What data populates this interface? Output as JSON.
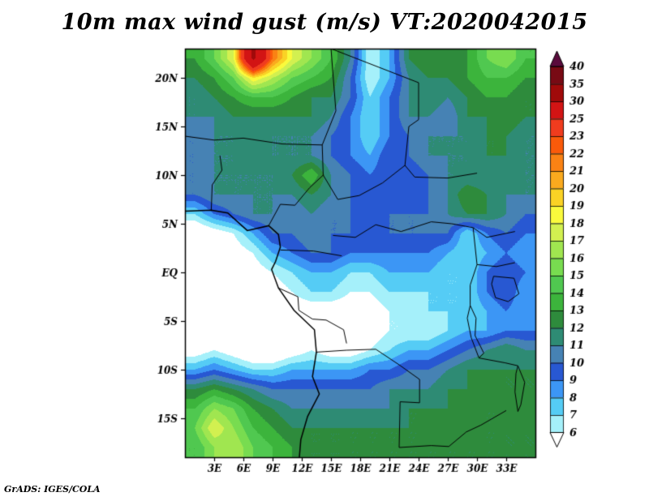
{
  "title": "10m max wind gust (m/s) VT:2020042015",
  "credit": "GrADS: IGES/COLA",
  "chart_data": {
    "type": "heatmap",
    "title": "10m max wind gust (m/s) VT:2020042015",
    "units": "m/s",
    "valid_time_label": "VT:2020042015",
    "lon_range": [
      0,
      36
    ],
    "lat_range": [
      23,
      -19
    ],
    "x_ticks": [
      {
        "value": 3,
        "label": "3E"
      },
      {
        "value": 6,
        "label": "6E"
      },
      {
        "value": 9,
        "label": "9E"
      },
      {
        "value": 12,
        "label": "12E"
      },
      {
        "value": 15,
        "label": "15E"
      },
      {
        "value": 18,
        "label": "18E"
      },
      {
        "value": 21,
        "label": "21E"
      },
      {
        "value": 24,
        "label": "24E"
      },
      {
        "value": 27,
        "label": "27E"
      },
      {
        "value": 30,
        "label": "30E"
      },
      {
        "value": 33,
        "label": "33E"
      }
    ],
    "y_ticks": [
      {
        "value": 20,
        "label": "20N"
      },
      {
        "value": 15,
        "label": "15N"
      },
      {
        "value": 10,
        "label": "10N"
      },
      {
        "value": 5,
        "label": "5N"
      },
      {
        "value": 0,
        "label": "EQ"
      },
      {
        "value": -5,
        "label": "5S"
      },
      {
        "value": -10,
        "label": "10S"
      },
      {
        "value": -15,
        "label": "15S"
      }
    ],
    "colorbar": {
      "levels": [
        6,
        7,
        8,
        9,
        10,
        11,
        12,
        13,
        14,
        15,
        16,
        17,
        18,
        19,
        20,
        21,
        22,
        23,
        25,
        30,
        35,
        40
      ],
      "labels": [
        "6",
        "7",
        "8",
        "9",
        "10",
        "11",
        "12",
        "13",
        "14",
        "15",
        "16",
        "17",
        "18",
        "19",
        "20",
        "21",
        "22",
        "23",
        "25",
        "30",
        "35",
        "40"
      ],
      "segment_colors": [
        "#a5f0fa",
        "#55ccf5",
        "#3c96f5",
        "#2858d2",
        "#4682b4",
        "#2e8b74",
        "#2e8b3c",
        "#3cb43c",
        "#50c850",
        "#78dc50",
        "#a0e650",
        "#d2f050",
        "#fafa3c",
        "#fad225",
        "#faaa1e",
        "#fa8214",
        "#fa5a0a",
        "#f03c1e",
        "#d21414",
        "#a00a0a",
        "#780a14"
      ],
      "under_color": "#ffffff",
      "over_color": "#5a0a3c"
    },
    "grid": {
      "lon_start": 1,
      "lon_step": 2,
      "lat_start": 22,
      "lat_step": -2,
      "values": [
        [
          13,
          15,
          18,
          31,
          22,
          18,
          16,
          14,
          11,
          6,
          8,
          12,
          13,
          12,
          13,
          15,
          16,
          14
        ],
        [
          12,
          13,
          15,
          19,
          17,
          15,
          14,
          13,
          10,
          6,
          8,
          11,
          12,
          12,
          13,
          14,
          14,
          13
        ],
        [
          11,
          12,
          13,
          14,
          14,
          13,
          12,
          12,
          10,
          7,
          9,
          11,
          12,
          11,
          12,
          13,
          13,
          12
        ],
        [
          11,
          11,
          12,
          12,
          12,
          12,
          12,
          11,
          9,
          7,
          9,
          11,
          11,
          10,
          12,
          12,
          13,
          12
        ],
        [
          10,
          11,
          11,
          12,
          11,
          11,
          11,
          10,
          9,
          7,
          9,
          10,
          11,
          11,
          11,
          12,
          12,
          11
        ],
        [
          10,
          11,
          11,
          12,
          11,
          11,
          11,
          10,
          9,
          8,
          10,
          10,
          11,
          11,
          11,
          12,
          12,
          11
        ],
        [
          10,
          11,
          11,
          11,
          11,
          12,
          14,
          11,
          10,
          9,
          10,
          9,
          10,
          11,
          11,
          11,
          12,
          11
        ],
        [
          10,
          11,
          11,
          11,
          11,
          11,
          12,
          11,
          10,
          10,
          10,
          9,
          10,
          11,
          13,
          12,
          11,
          11
        ],
        [
          7,
          9,
          10,
          11,
          11,
          10,
          11,
          10,
          10,
          9,
          10,
          10,
          10,
          11,
          12,
          12,
          11,
          10
        ],
        [
          4,
          5,
          6,
          8,
          10,
          10,
          11,
          10,
          10,
          10,
          10,
          10,
          10,
          10,
          7,
          9,
          10,
          9
        ],
        [
          3,
          4,
          5,
          6,
          8,
          9,
          10,
          10,
          9,
          9,
          9,
          9,
          9,
          8,
          7,
          8,
          9,
          8
        ],
        [
          2,
          3,
          4,
          5,
          6,
          7,
          8,
          8,
          7,
          7,
          8,
          8,
          8,
          7,
          7,
          9,
          10,
          9
        ],
        [
          2,
          3,
          3,
          4,
          5,
          6,
          7,
          7,
          6,
          6,
          7,
          7,
          7,
          7,
          7,
          9,
          10,
          8
        ],
        [
          2,
          2,
          3,
          3,
          4,
          5,
          5,
          5,
          5,
          5,
          6,
          6,
          7,
          7,
          7,
          8,
          9,
          8
        ],
        [
          3,
          2,
          2,
          3,
          3,
          4,
          4,
          5,
          5,
          5,
          6,
          6,
          6,
          7,
          8,
          8,
          9,
          9
        ],
        [
          5,
          6,
          5,
          4,
          4,
          5,
          6,
          5,
          5,
          6,
          7,
          8,
          8,
          9,
          10,
          11,
          12,
          11
        ],
        [
          8,
          9,
          8,
          7,
          7,
          8,
          8,
          8,
          8,
          9,
          9,
          10,
          10,
          11,
          12,
          12,
          12,
          12
        ],
        [
          12,
          13,
          12,
          11,
          10,
          10,
          10,
          10,
          10,
          10,
          11,
          11,
          11,
          12,
          12,
          13,
          12,
          12
        ],
        [
          14,
          16,
          15,
          13,
          12,
          11,
          11,
          11,
          11,
          11,
          11,
          12,
          12,
          12,
          13,
          12,
          12,
          13
        ],
        [
          15,
          18,
          16,
          14,
          13,
          12,
          12,
          12,
          12,
          12,
          12,
          12,
          12,
          13,
          13,
          12,
          12,
          12
        ],
        [
          14,
          16,
          17,
          15,
          14,
          13,
          12,
          12,
          12,
          12,
          12,
          12,
          12,
          12,
          12,
          12,
          12,
          12
        ]
      ]
    },
    "coastline": [
      [
        [
          0,
          6.3
        ],
        [
          2.7,
          6.4
        ],
        [
          4.4,
          6.1
        ],
        [
          6.4,
          4.3
        ],
        [
          8.6,
          4.8
        ],
        [
          9.6,
          3.9
        ],
        [
          9.8,
          2.6
        ],
        [
          9.3,
          1.1
        ],
        [
          8.9,
          0.3
        ],
        [
          9.6,
          -1.6
        ],
        [
          11.2,
          -3.9
        ],
        [
          13.3,
          -5.9
        ],
        [
          13.5,
          -8.2
        ],
        [
          13.1,
          -10.7
        ],
        [
          13.8,
          -12.5
        ],
        [
          12.6,
          -14.8
        ],
        [
          11.9,
          -17.2
        ],
        [
          11.75,
          -19
        ]
      ]
    ],
    "borders": [
      [
        [
          0,
          14.0
        ],
        [
          3,
          13.6
        ],
        [
          6,
          13.8
        ],
        [
          10,
          13.2
        ],
        [
          14.1,
          13.1
        ]
      ],
      [
        [
          2.7,
          6.4
        ],
        [
          2.8,
          9.0
        ],
        [
          3.8,
          10.5
        ],
        [
          3.6,
          12.0
        ]
      ],
      [
        [
          8.6,
          4.8
        ],
        [
          9.8,
          7.0
        ],
        [
          11.3,
          6.9
        ],
        [
          12.8,
          8.7
        ],
        [
          14.2,
          10.0
        ],
        [
          14.1,
          13.1
        ]
      ],
      [
        [
          14.1,
          13.1
        ],
        [
          15.5,
          16.6
        ],
        [
          15.0,
          23.0
        ]
      ],
      [
        [
          15.0,
          23.0
        ],
        [
          24.0,
          19.5
        ]
      ],
      [
        [
          24.0,
          19.5
        ],
        [
          24.0,
          15.7
        ],
        [
          23.0,
          15.0
        ],
        [
          22.6,
          11.0
        ],
        [
          23.6,
          9.8
        ]
      ],
      [
        [
          14.2,
          10.0
        ],
        [
          15.7,
          7.5
        ],
        [
          17.9,
          7.9
        ],
        [
          20.3,
          9.2
        ],
        [
          22.6,
          11.0
        ]
      ],
      [
        [
          23.6,
          9.8
        ],
        [
          27.0,
          9.7
        ],
        [
          30.0,
          10.2
        ]
      ],
      [
        [
          15.2,
          3.8
        ],
        [
          17.5,
          3.6
        ],
        [
          19.6,
          4.9
        ],
        [
          22.2,
          4.2
        ],
        [
          25.3,
          5.2
        ],
        [
          27.4,
          5.0
        ],
        [
          29.6,
          4.6
        ]
      ],
      [
        [
          29.6,
          4.6
        ],
        [
          31.0,
          3.6
        ],
        [
          33.9,
          4.2
        ]
      ],
      [
        [
          29.6,
          4.6
        ],
        [
          30.0,
          0.8
        ],
        [
          29.3,
          -1.3
        ],
        [
          29.3,
          -3.4
        ]
      ],
      [
        [
          30.0,
          0.8
        ],
        [
          32.0,
          0.6
        ],
        [
          33.9,
          1.0
        ]
      ],
      [
        [
          9.8,
          2.3
        ],
        [
          13.2,
          2.2
        ],
        [
          16.1,
          1.7
        ]
      ],
      [
        [
          9.6,
          -1.6
        ],
        [
          11.6,
          -2.5
        ],
        [
          11.7,
          -3.9
        ],
        [
          13.1,
          -4.8
        ],
        [
          14.5,
          -4.9
        ],
        [
          16.3,
          -5.9
        ],
        [
          16.6,
          -7.3
        ]
      ],
      [
        [
          13.5,
          -8.2
        ],
        [
          16.6,
          -8.0
        ],
        [
          19.6,
          -7.9
        ],
        [
          22.0,
          -9.5
        ],
        [
          24.1,
          -11.0
        ],
        [
          24.1,
          -13.4
        ]
      ],
      [
        [
          24.1,
          -13.4
        ],
        [
          22.1,
          -13.3
        ],
        [
          22.0,
          -18.0
        ]
      ],
      [
        [
          22.0,
          -18.0
        ],
        [
          25.3,
          -17.8
        ],
        [
          27.1,
          -17.9
        ],
        [
          28.9,
          -16.4
        ],
        [
          30.4,
          -15.7
        ],
        [
          33.0,
          -14.2
        ]
      ],
      [
        [
          30.2,
          -8.8
        ],
        [
          32.9,
          -9.3
        ],
        [
          34.2,
          -9.6
        ]
      ]
    ],
    "lakes": [
      [
        [
          31.7,
          -0.4
        ],
        [
          33.8,
          -0.6
        ],
        [
          34.3,
          -2.2
        ],
        [
          33.2,
          -3.0
        ],
        [
          31.9,
          -2.6
        ],
        [
          31.5,
          -1.2
        ],
        [
          31.7,
          -0.4
        ]
      ],
      [
        [
          29.3,
          -3.4
        ],
        [
          29.9,
          -4.7
        ],
        [
          29.8,
          -6.5
        ],
        [
          30.7,
          -8.3
        ],
        [
          30.2,
          -8.8
        ],
        [
          29.4,
          -6.7
        ],
        [
          29.0,
          -4.7
        ],
        [
          29.3,
          -3.4
        ]
      ],
      [
        [
          34.2,
          -9.6
        ],
        [
          34.9,
          -11.3
        ],
        [
          34.5,
          -13.6
        ],
        [
          34.2,
          -14.3
        ],
        [
          33.9,
          -12.3
        ],
        [
          34.0,
          -10.4
        ],
        [
          34.2,
          -9.6
        ]
      ]
    ]
  }
}
